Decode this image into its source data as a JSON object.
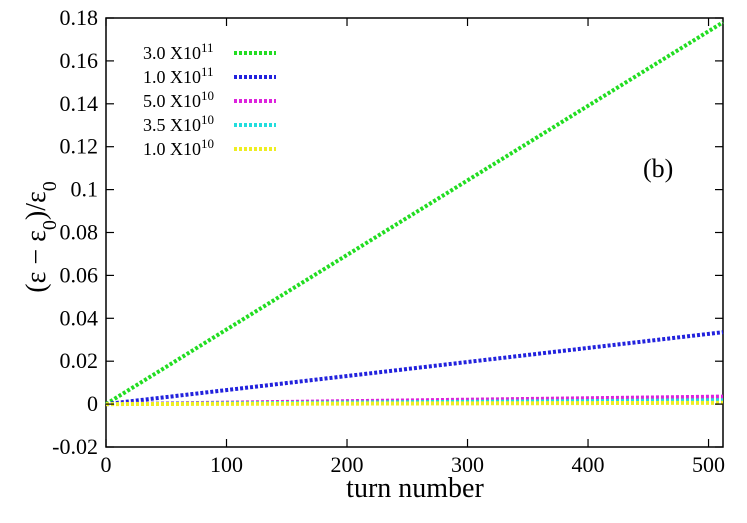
{
  "chart_data": {
    "type": "line",
    "title": "",
    "xlabel": "turn number",
    "ylabel_main": "(ε − ε",
    "ylabel_sub1": "0",
    "ylabel_mid": ")/ε",
    "ylabel_sub2": "0",
    "panel_label": "(b)",
    "xlim": [
      0,
      512
    ],
    "ylim": [
      -0.02,
      0.18
    ],
    "xticks": [
      0,
      100,
      200,
      300,
      400,
      500
    ],
    "yticks": [
      -0.02,
      0,
      0.02,
      0.04,
      0.06,
      0.08,
      0.1,
      0.12,
      0.14,
      0.16,
      0.18
    ],
    "xtick_labels": [
      "0",
      "100",
      "200",
      "300",
      "400",
      "500"
    ],
    "ytick_labels": [
      "-0.02",
      "0",
      "0.02",
      "0.04",
      "0.06",
      "0.08",
      "0.1",
      "0.12",
      "0.14",
      "0.16",
      "0.18"
    ],
    "grid": false,
    "legend_position": "top-left",
    "series": [
      {
        "name_base": "3.0 X10",
        "name_exp": "11",
        "color": "#22dd22",
        "x": [
          0,
          512
        ],
        "y": [
          0,
          0.178
        ]
      },
      {
        "name_base": "1.0 X10",
        "name_exp": "11",
        "color": "#2222dd",
        "x": [
          0,
          512
        ],
        "y": [
          0,
          0.0335
        ]
      },
      {
        "name_base": "5.0 X10",
        "name_exp": "10",
        "color": "#dd22dd",
        "x": [
          0,
          512
        ],
        "y": [
          0,
          0.0035
        ]
      },
      {
        "name_base": "3.5 X10",
        "name_exp": "10",
        "color": "#22dddd",
        "x": [
          0,
          512
        ],
        "y": [
          0,
          0.0018
        ]
      },
      {
        "name_base": "1.0 X10",
        "name_exp": "10",
        "color": "#eeee22",
        "x": [
          0,
          512
        ],
        "y": [
          0,
          0.0006
        ]
      }
    ]
  }
}
